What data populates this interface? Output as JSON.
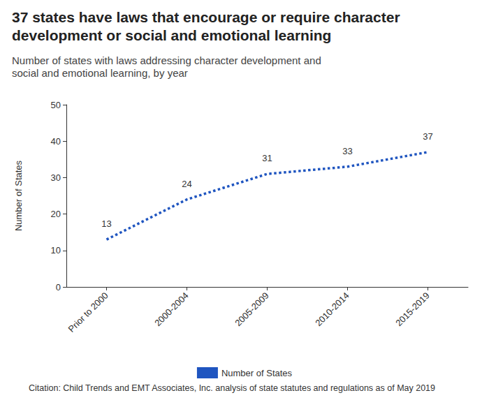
{
  "chart_data": {
    "type": "line",
    "title": "37 states have laws that encourage or require character development or social and emotional learning",
    "subtitle": "Number of states with laws addressing character development and social and emotional learning, by year",
    "y_label": "Number of States",
    "caption": "Citation: Child Trends and EMT Associates, Inc. analysis of state statutes and regulations as of May 2019",
    "categories": [
      "Prior to 2000",
      "2000-2004",
      "2005-2009",
      "2010-2014",
      "2015-2019"
    ],
    "series": [
      {
        "name": "Number of States",
        "color": "#1f55c0",
        "values": [
          13,
          24,
          31,
          33,
          37
        ]
      }
    ],
    "ylim": [
      0,
      50
    ],
    "yticks": [
      0,
      10,
      20,
      30,
      40,
      50
    ],
    "grid": false,
    "legend": "bottom",
    "data_labels": true,
    "marker": "none",
    "line_style": "dotted"
  }
}
